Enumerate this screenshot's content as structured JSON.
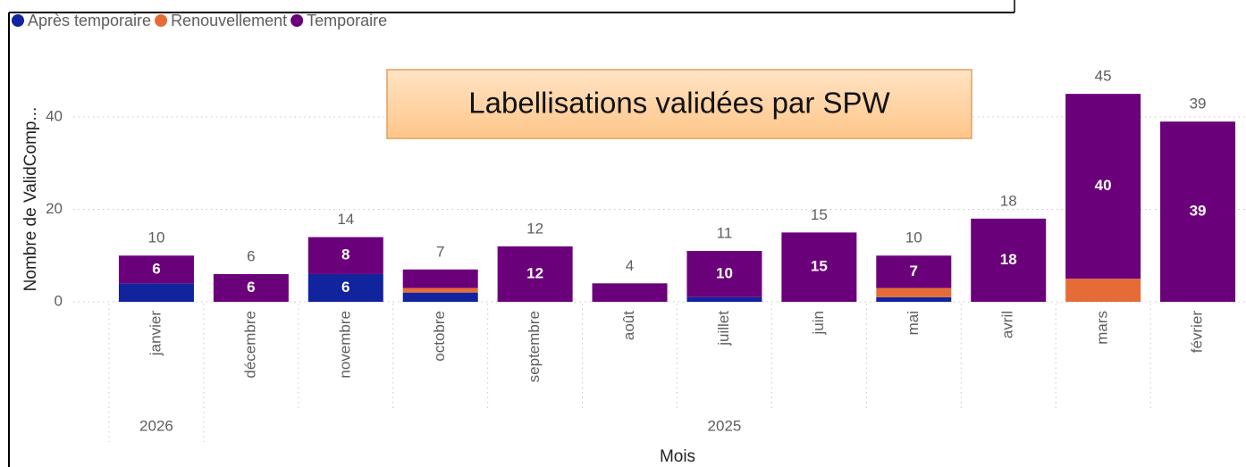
{
  "chart_data": {
    "type": "stacked_bar",
    "title": "Labellisations validées par SPW",
    "y_label": "Nombre de ValidComp...",
    "x_label": "Mois",
    "categories": [
      "janvier",
      "décembre",
      "novembre",
      "octobre",
      "septembre",
      "août",
      "juillet",
      "juin",
      "mai",
      "avril",
      "mars",
      "février"
    ],
    "x_groups": [
      {
        "label": "2026",
        "span": 1
      },
      {
        "label": "2025",
        "span": 11
      }
    ],
    "series": [
      {
        "name": "Après temporaire",
        "color": "#12239e",
        "values": [
          4,
          0,
          6,
          2,
          0,
          0,
          1,
          0,
          1,
          0,
          0,
          0
        ]
      },
      {
        "name": "Renouvellement",
        "color": "#e66c37",
        "values": [
          0,
          0,
          0,
          1,
          0,
          0,
          0,
          0,
          2,
          0,
          5,
          0
        ]
      },
      {
        "name": "Temporaire",
        "color": "#6b007b",
        "values": [
          6,
          6,
          8,
          4,
          12,
          4,
          10,
          15,
          7,
          18,
          40,
          39
        ]
      }
    ],
    "totals": [
      10,
      6,
      14,
      7,
      12,
      4,
      11,
      15,
      10,
      18,
      45,
      39
    ],
    "ylim": [
      0,
      47
    ],
    "yticks": [
      0,
      20,
      40
    ],
    "grid": true,
    "legend": "top-left"
  }
}
